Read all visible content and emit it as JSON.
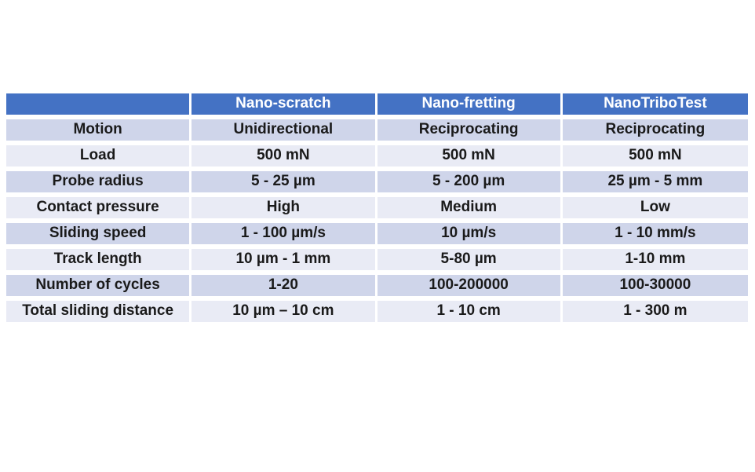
{
  "colors": {
    "header_bg": "#4472C4",
    "header_text": "#FFFFFF",
    "band_dark": "#CFD5EA",
    "band_light": "#E9EBF5",
    "body_text": "#1A1A1A",
    "page_bg": "#FFFFFF"
  },
  "chart_data": {
    "type": "table",
    "title": "",
    "legend": "none",
    "grid": "white gutters between cells, banded rows",
    "columns": [
      "",
      "Nano-scratch",
      "Nano-fretting",
      "NanoTriboTest"
    ],
    "row_labels": [
      "Motion",
      "Load",
      "Probe radius",
      "Contact pressure",
      "Sliding speed",
      "Track length",
      "Number of cycles",
      "Total sliding distance"
    ],
    "rows": [
      [
        "Motion",
        "Unidirectional",
        "Reciprocating",
        "Reciprocating"
      ],
      [
        "Load",
        "500 mN",
        "500 mN",
        "500 mN"
      ],
      [
        "Probe radius",
        "5 - 25 µm",
        "5 - 200 µm",
        "25 µm - 5 mm"
      ],
      [
        "Contact pressure",
        "High",
        "Medium",
        "Low"
      ],
      [
        "Sliding speed",
        "1 - 100 µm/s",
        "10 µm/s",
        "1 - 10 mm/s"
      ],
      [
        "Track length",
        "10 µm - 1 mm",
        "5-80 µm",
        "1-10 mm"
      ],
      [
        "Number of cycles",
        "1-20",
        "100-200000",
        "100-30000"
      ],
      [
        "Total sliding distance",
        "10 µm – 10 cm",
        "1 - 10 cm",
        "1 - 300 m"
      ]
    ]
  }
}
